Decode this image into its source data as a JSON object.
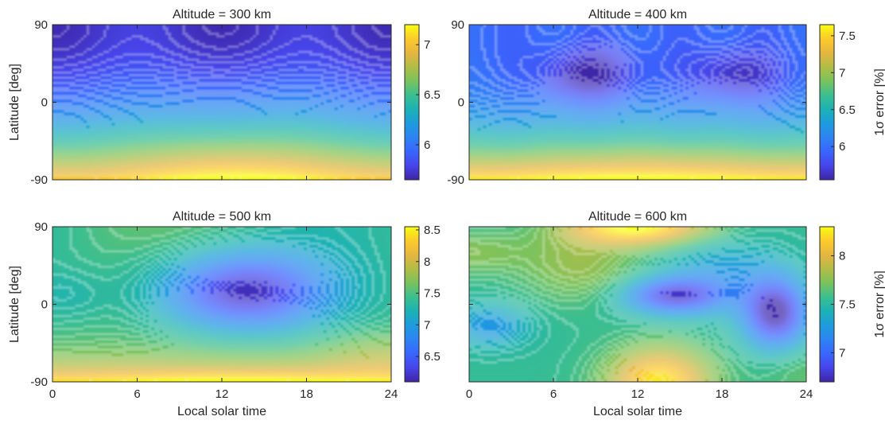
{
  "colormap": [
    "#3e26a8",
    "#4746eb",
    "#3a66fe",
    "#2d84f2",
    "#1e9bde",
    "#1cb2b5",
    "#3bbe90",
    "#78c35f",
    "#b1bd47",
    "#e4b641",
    "#fcca2b",
    "#f9fb15"
  ],
  "chart_data": [
    {
      "type": "heatmap",
      "title": "Altitude = 300 km",
      "xlabel": "",
      "ylabel": "Latitude [deg]",
      "xlim": [
        0,
        24
      ],
      "ylim": [
        -90,
        90
      ],
      "xticks": [
        "0",
        "6",
        "12",
        "18",
        "24"
      ],
      "yticks": [
        "-90",
        "0",
        "90"
      ],
      "color_range": [
        5.65,
        7.2
      ],
      "colorbar_ticks": [
        "6",
        "6.5",
        "7"
      ],
      "colorbar_label": "",
      "field_description": "Error lowest at northern high latitudes (about 5.7%) and increases smoothly southward to about 7.2% near -80 deg around 13 h local solar time."
    },
    {
      "type": "heatmap",
      "title": "Altitude = 400 km",
      "xlabel": "",
      "ylabel": "",
      "xlim": [
        0,
        24
      ],
      "ylim": [
        -90,
        90
      ],
      "xticks": [
        "0",
        "6",
        "12",
        "18",
        "24"
      ],
      "yticks": [
        "-90",
        "0",
        "90"
      ],
      "color_range": [
        5.55,
        7.65
      ],
      "colorbar_ticks": [
        "6",
        "6.5",
        "7",
        "7.5"
      ],
      "colorbar_label": "1σ error [%]",
      "field_description": "Minima near 30 deg latitude at about 8.5 h and 19 h (about 5.6%); error rises toward the southern pole to about 7.6%."
    },
    {
      "type": "heatmap",
      "title": "Altitude = 500 km",
      "xlabel": "Local solar time",
      "ylabel": "Latitude [deg]",
      "xlim": [
        0,
        24
      ],
      "ylim": [
        -90,
        90
      ],
      "xticks": [
        "0",
        "6",
        "12",
        "18",
        "24"
      ],
      "yticks": [
        "-90",
        "0",
        "90"
      ],
      "color_range": [
        6.1,
        8.55
      ],
      "colorbar_ticks": [
        "6.5",
        "7",
        "7.5",
        "8",
        "8.5"
      ],
      "colorbar_label": "",
      "field_description": "Deep minimum near 15 deg latitude at about 13.5 h (about 6.1%); maximum along the southern edge around 12 h (about 8.5%)."
    },
    {
      "type": "heatmap",
      "title": "Altitude = 600 km",
      "xlabel": "Local solar time",
      "ylabel": "",
      "xlim": [
        0,
        24
      ],
      "ylim": [
        -90,
        90
      ],
      "xticks": [
        "0",
        "6",
        "12",
        "18",
        "24"
      ],
      "yticks": [],
      "color_range": [
        6.7,
        8.3
      ],
      "colorbar_ticks": [
        "7",
        "7.5",
        "8"
      ],
      "colorbar_label": "1σ error [%]",
      "field_description": "Maxima at the northern edge near 12 h and southern edge near 13.5 h (about 8.3%); minima near 10 deg at 14.5 h and near -10 deg at 21.5 h (about 6.7%)."
    }
  ]
}
